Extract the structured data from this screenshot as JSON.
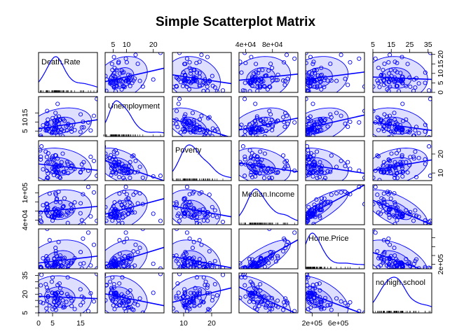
{
  "chart_data": {
    "type": "scatter",
    "subtype": "scatterplot-matrix",
    "title": "Simple Scatterplot Matrix",
    "variables": [
      "Death.Rate",
      "Unemployment",
      "Poverty",
      "Median.Income",
      "Home.Price",
      "no.high.school"
    ],
    "ranges": [
      [
        0,
        21
      ],
      [
        2,
        24
      ],
      [
        6,
        27
      ],
      [
        30000,
        118000
      ],
      [
        100000,
        1000000
      ],
      [
        5,
        37
      ]
    ],
    "ticks": [
      {
        "values": [
          0,
          5,
          15
        ],
        "labels": [
          "0",
          "5",
          "15"
        ],
        "side": "bottom"
      },
      {
        "values": [
          5,
          10,
          20
        ],
        "labels": [
          "5",
          "10",
          "20"
        ],
        "side": "top"
      },
      {
        "values": [
          10,
          20
        ],
        "labels": [
          "10",
          "20"
        ],
        "side": "bottom"
      },
      {
        "values": [
          40000,
          80000
        ],
        "labels": [
          "4e+04",
          "8e+04"
        ],
        "side": "top"
      },
      {
        "values": [
          200000,
          600000
        ],
        "labels": [
          "2e+05",
          "6e+05"
        ],
        "side": "bottom"
      },
      {
        "values": [
          5,
          15,
          25,
          35
        ],
        "labels": [
          "5",
          "15",
          "25",
          "35"
        ],
        "side": "top"
      }
    ],
    "right_ticks": [
      {
        "row": 0,
        "values": [
          0,
          5,
          10,
          15,
          20
        ],
        "labels": [
          "0",
          "5",
          "10",
          "15",
          "20"
        ]
      },
      {
        "row": 2,
        "values": [
          10,
          20
        ],
        "labels": [
          "10",
          "20"
        ]
      },
      {
        "row": 4,
        "values": [
          200000,
          400000,
          600000,
          800000
        ],
        "labels": [
          "2e+05",
          "",
          "",
          ""
        ]
      }
    ],
    "left_ticks": [
      {
        "row": 1,
        "values": [
          5,
          10,
          15
        ],
        "labels": [
          "5",
          "10",
          "15"
        ]
      },
      {
        "row": 3,
        "values": [
          40000,
          60000,
          80000,
          100000
        ],
        "labels": [
          "4e+04",
          "",
          "",
          "1e+05"
        ]
      },
      {
        "row": 5,
        "values": [
          5,
          10,
          15,
          20,
          25,
          30,
          35
        ],
        "labels": [
          "5",
          "",
          "",
          "20",
          "",
          "",
          "35"
        ]
      }
    ],
    "data_points": [
      [
        0.78,
        1.47,
        17.1,
        57400,
        148000,
        13.6
      ],
      [
        5.97,
        4.13,
        19.33,
        53200,
        224000,
        20.9
      ],
      [
        3.33,
        6.0,
        9.74,
        60900,
        167000,
        17.9
      ],
      [
        2.82,
        9.28,
        6.24,
        76400,
        383000,
        8.6
      ],
      [
        5.44,
        4.25,
        8.96,
        47600,
        142000,
        16.8
      ],
      [
        2.97,
        5.36,
        18.43,
        57800,
        164000,
        25.3
      ],
      [
        16.09,
        7.06,
        15.68,
        31600,
        223000,
        17.0
      ],
      [
        4.72,
        3.87,
        17.91,
        47500,
        113000,
        30.0
      ],
      [
        9.93,
        7.53,
        12.49,
        52100,
        200000,
        13.8
      ],
      [
        8.62,
        2.13,
        20.2,
        68700,
        146000,
        15.1
      ],
      [
        2.98,
        8.89,
        11.17,
        68300,
        243000,
        14.3
      ],
      [
        7.48,
        7.3,
        7.84,
        49800,
        313000,
        28.6
      ],
      [
        5.57,
        8.66,
        13.0,
        45700,
        320000,
        14.0
      ],
      [
        6.52,
        10.71,
        10.15,
        87600,
        387000,
        14.8
      ],
      [
        6.45,
        10.0,
        10.11,
        85400,
        265000,
        10.8
      ],
      [
        12.89,
        5.54,
        12.15,
        79300,
        339000,
        8.1
      ],
      [
        4.85,
        6.14,
        10.38,
        48300,
        172000,
        21.2
      ],
      [
        4.94,
        4.34,
        12.54,
        47500,
        140000,
        21.0
      ],
      [
        11.78,
        6.29,
        13.88,
        60000,
        237000,
        10.5
      ],
      [
        6.79,
        2.55,
        17.61,
        50800,
        214000,
        27.4
      ],
      [
        5.53,
        5.96,
        16.91,
        63900,
        196000,
        13.7
      ],
      [
        3.44,
        6.45,
        20.42,
        49700,
        185000,
        17.9
      ],
      [
        6.94,
        5.69,
        11.39,
        63600,
        318000,
        17.6
      ],
      [
        5.63,
        10.65,
        12.03,
        62800,
        335000,
        14.0
      ],
      [
        10.2,
        5.35,
        15.71,
        58600,
        240000,
        20.0
      ],
      [
        8.19,
        5.77,
        15.7,
        54600,
        161000,
        21.2
      ],
      [
        11.8,
        4.69,
        13.54,
        65000,
        269000,
        14.8
      ],
      [
        15.46,
        6.97,
        14.58,
        39900,
        109000,
        18.1
      ],
      [
        5.74,
        10.76,
        11.73,
        54200,
        177000,
        9.2
      ],
      [
        3.34,
        8.87,
        7.39,
        67700,
        278000,
        18.3
      ],
      [
        0.81,
        2.42,
        18.55,
        38700,
        127000,
        27.1
      ],
      [
        6.08,
        8.2,
        10.43,
        53300,
        225000,
        19.9
      ],
      [
        7.76,
        11.28,
        7.43,
        79100,
        400000,
        16.9
      ],
      [
        5.01,
        4.71,
        17.19,
        39100,
        137000,
        33.4
      ],
      [
        10.58,
        8.93,
        9.96,
        55400,
        159000,
        18.2
      ],
      [
        7.26,
        13.05,
        10.32,
        57000,
        173000,
        12.6
      ],
      [
        6.28,
        6.77,
        14.45,
        60400,
        198000,
        18.9
      ],
      [
        5.67,
        6.1,
        14.75,
        46800,
        245000,
        20.4
      ],
      [
        7.47,
        10.82,
        13.61,
        62700,
        348000,
        14.1
      ],
      [
        11.51,
        8.21,
        12.6,
        74200,
        233000,
        17.1
      ],
      [
        6.25,
        6.04,
        14.03,
        50900,
        200000,
        20.3
      ],
      [
        1.59,
        8.19,
        11.98,
        72900,
        339000,
        12.8
      ],
      [
        9.25,
        10.66,
        10.5,
        88200,
        346000,
        9.7
      ],
      [
        7.73,
        4.35,
        14.13,
        53200,
        243000,
        24.9
      ],
      [
        6.99,
        4.91,
        13.51,
        50300,
        132000,
        16.1
      ],
      [
        6.79,
        10.5,
        10.53,
        53600,
        146000,
        21.4
      ],
      [
        5.89,
        9.79,
        13.65,
        66100,
        233000,
        17.5
      ],
      [
        8.22,
        5.69,
        13.62,
        49900,
        180000,
        20.9
      ],
      [
        0.58,
        5.92,
        21.95,
        46300,
        135000,
        19.1
      ],
      [
        6.2,
        7.51,
        10.95,
        80300,
        438000,
        11.2
      ],
      [
        8.8,
        11.46,
        10.59,
        70100,
        329000,
        9.4
      ],
      [
        18.6,
        5.3,
        18.5,
        48200,
        175000,
        20.8
      ],
      [
        8.93,
        5.1,
        10.52,
        70800,
        292000,
        11.0
      ],
      [
        20.8,
        22.7,
        8.53,
        38500,
        106000,
        36.2
      ],
      [
        17.76,
        9.74,
        11.22,
        113000,
        917000,
        6.4
      ],
      [
        5.03,
        12.1,
        18.76,
        56900,
        140000,
        8.0
      ],
      [
        3.33,
        11.35,
        15.73,
        61900,
        320000,
        23.0
      ],
      [
        2.58,
        5.33,
        21.2,
        61600,
        273000,
        28.0
      ],
      [
        14.95,
        4.56,
        10.28,
        55200,
        211000,
        23.9
      ],
      [
        6.79,
        20.0,
        8.2,
        54300,
        213000,
        21.1
      ],
      [
        19.75,
        13.38,
        16.36,
        101200,
        642000,
        14.2
      ],
      [
        6.21,
        12.6,
        19.2,
        96100,
        494000,
        7.4
      ],
      [
        15.03,
        14.2,
        10.6,
        77200,
        478000,
        11.3
      ],
      [
        10.42,
        8.41,
        14.73,
        33700,
        103000,
        33.5
      ],
      [
        3.94,
        7.36,
        15.68,
        98500,
        745000,
        11.0
      ],
      [
        1.04,
        1.52,
        24.0,
        36200,
        122000,
        35.5
      ],
      [
        3.07,
        16.1,
        7.5,
        75400,
        1000000,
        5.2
      ],
      [
        15.84,
        10.1,
        12.16,
        97200,
        780000,
        13.5
      ],
      [
        7.15,
        9.05,
        13.68,
        102700,
        705000,
        13.0
      ],
      [
        6.06,
        15.0,
        13.22,
        99200,
        572000,
        16.6
      ]
    ]
  }
}
